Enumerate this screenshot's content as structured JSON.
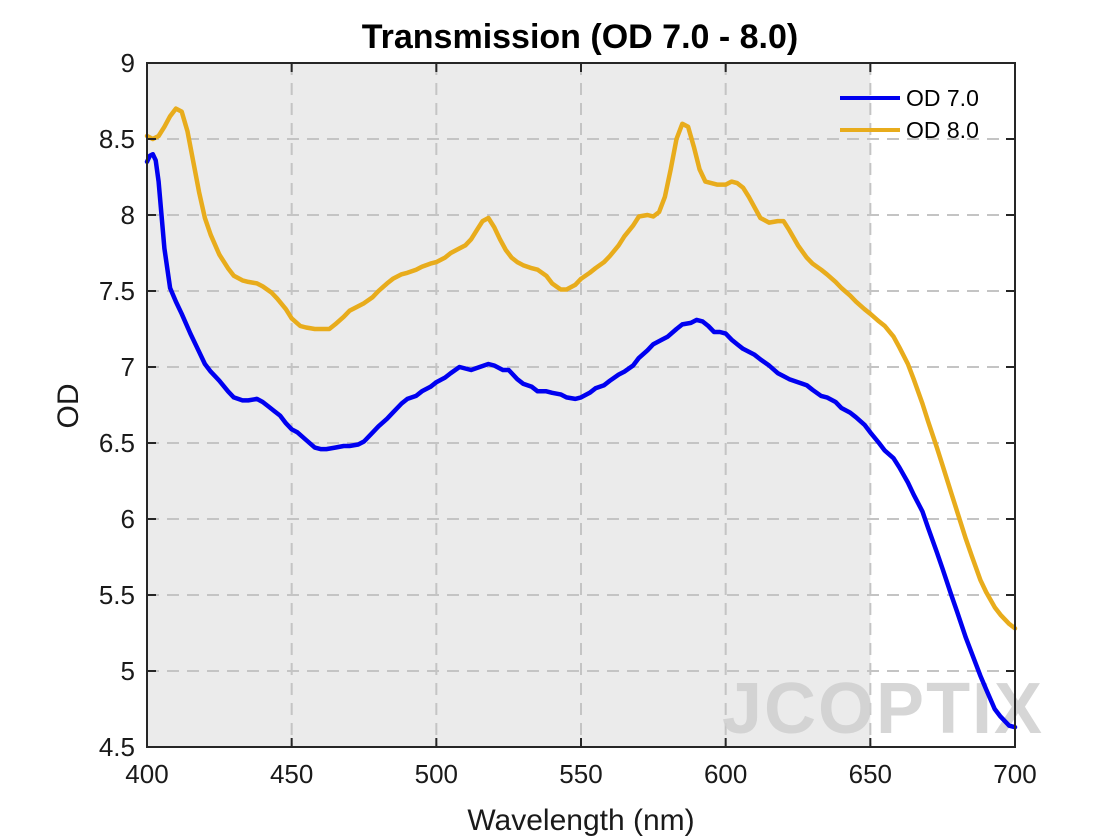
{
  "chart_data": {
    "type": "line",
    "title": "Transmission (OD 7.0 - 8.0)",
    "xlabel": "Wavelength (nm)",
    "ylabel": "OD",
    "xlim": [
      400,
      700
    ],
    "ylim": [
      4.5,
      9
    ],
    "xticks": [
      400,
      450,
      500,
      550,
      600,
      650,
      700
    ],
    "yticks": [
      4.5,
      5,
      5.5,
      6,
      6.5,
      7,
      7.5,
      8,
      8.5,
      9
    ],
    "xtick_labels": [
      "400",
      "450",
      "500",
      "550",
      "600",
      "650",
      "700"
    ],
    "ytick_labels": [
      "4.5",
      "5",
      "5.5",
      "6",
      "6.5",
      "7",
      "7.5",
      "8",
      "8.5",
      "9"
    ],
    "grid": true,
    "shaded_region": {
      "x_from": 400,
      "x_to": 650,
      "color": "#ebebeb"
    },
    "legend_position": "top-right",
    "watermark": "JCOPTIX",
    "series": [
      {
        "name": "OD 7.0",
        "color": "#0000f0",
        "x": [
          400,
          401,
          402,
          403,
          404,
          405,
          406,
          408,
          410,
          412,
          415,
          418,
          420,
          422,
          425,
          428,
          430,
          433,
          435,
          438,
          440,
          442,
          444,
          446,
          448,
          450,
          452,
          455,
          458,
          460,
          462,
          465,
          468,
          470,
          473,
          475,
          478,
          480,
          483,
          485,
          488,
          490,
          493,
          495,
          498,
          500,
          503,
          505,
          508,
          510,
          512,
          515,
          518,
          520,
          523,
          525,
          528,
          530,
          533,
          535,
          538,
          540,
          543,
          545,
          548,
          550,
          553,
          555,
          558,
          560,
          563,
          565,
          568,
          570,
          573,
          575,
          578,
          580,
          583,
          585,
          588,
          590,
          592,
          594,
          596,
          598,
          600,
          602,
          604,
          606,
          608,
          610,
          612,
          615,
          618,
          620,
          622,
          625,
          628,
          630,
          633,
          635,
          638,
          640,
          643,
          645,
          648,
          650,
          653,
          655,
          658,
          660,
          663,
          665,
          668,
          670,
          673,
          675,
          678,
          680,
          683,
          685,
          688,
          690,
          693,
          695,
          698,
          700
        ],
        "values": [
          8.35,
          8.39,
          8.4,
          8.36,
          8.22,
          8.0,
          7.78,
          7.52,
          7.43,
          7.35,
          7.22,
          7.1,
          7.02,
          6.97,
          6.91,
          6.84,
          6.8,
          6.78,
          6.78,
          6.79,
          6.77,
          6.74,
          6.71,
          6.68,
          6.63,
          6.59,
          6.57,
          6.52,
          6.47,
          6.46,
          6.46,
          6.47,
          6.48,
          6.48,
          6.49,
          6.51,
          6.57,
          6.61,
          6.66,
          6.7,
          6.76,
          6.79,
          6.81,
          6.84,
          6.87,
          6.9,
          6.93,
          6.96,
          7.0,
          6.99,
          6.98,
          7.0,
          7.02,
          7.01,
          6.98,
          6.98,
          6.92,
          6.89,
          6.87,
          6.84,
          6.84,
          6.83,
          6.82,
          6.8,
          6.79,
          6.8,
          6.83,
          6.86,
          6.88,
          6.91,
          6.95,
          6.97,
          7.01,
          7.06,
          7.11,
          7.15,
          7.18,
          7.2,
          7.25,
          7.28,
          7.29,
          7.31,
          7.3,
          7.27,
          7.23,
          7.23,
          7.22,
          7.18,
          7.15,
          7.12,
          7.1,
          7.08,
          7.05,
          7.01,
          6.96,
          6.94,
          6.92,
          6.9,
          6.88,
          6.85,
          6.81,
          6.8,
          6.77,
          6.73,
          6.7,
          6.67,
          6.62,
          6.57,
          6.5,
          6.45,
          6.4,
          6.34,
          6.24,
          6.16,
          6.05,
          5.94,
          5.78,
          5.67,
          5.5,
          5.39,
          5.22,
          5.12,
          4.97,
          4.88,
          4.75,
          4.7,
          4.64,
          4.63
        ]
      },
      {
        "name": "OD 8.0",
        "color": "#e8ac1c",
        "x": [
          400,
          402,
          404,
          406,
          408,
          410,
          412,
          414,
          416,
          418,
          420,
          422,
          425,
          428,
          430,
          433,
          435,
          438,
          440,
          443,
          445,
          448,
          450,
          453,
          455,
          458,
          460,
          463,
          465,
          468,
          470,
          473,
          475,
          478,
          480,
          483,
          485,
          488,
          490,
          493,
          495,
          498,
          500,
          503,
          505,
          508,
          510,
          512,
          514,
          516,
          518,
          520,
          522,
          524,
          526,
          528,
          530,
          533,
          535,
          538,
          540,
          543,
          545,
          548,
          550,
          553,
          555,
          558,
          560,
          563,
          565,
          568,
          570,
          573,
          575,
          577,
          579,
          581,
          583,
          585,
          587,
          589,
          591,
          593,
          595,
          597,
          600,
          602,
          604,
          606,
          608,
          610,
          612,
          615,
          618,
          620,
          622,
          625,
          628,
          630,
          633,
          635,
          638,
          640,
          643,
          645,
          648,
          650,
          653,
          655,
          658,
          660,
          663,
          665,
          668,
          670,
          673,
          675,
          678,
          680,
          683,
          685,
          688,
          690,
          693,
          695,
          698,
          700
        ],
        "values": [
          8.52,
          8.5,
          8.52,
          8.58,
          8.65,
          8.7,
          8.68,
          8.55,
          8.35,
          8.15,
          7.98,
          7.87,
          7.74,
          7.65,
          7.6,
          7.57,
          7.56,
          7.55,
          7.53,
          7.49,
          7.45,
          7.38,
          7.32,
          7.27,
          7.26,
          7.25,
          7.25,
          7.25,
          7.28,
          7.33,
          7.37,
          7.4,
          7.42,
          7.46,
          7.5,
          7.55,
          7.58,
          7.61,
          7.62,
          7.64,
          7.66,
          7.68,
          7.69,
          7.72,
          7.75,
          7.78,
          7.8,
          7.84,
          7.9,
          7.96,
          7.98,
          7.92,
          7.84,
          7.77,
          7.72,
          7.69,
          7.67,
          7.65,
          7.64,
          7.6,
          7.55,
          7.51,
          7.51,
          7.54,
          7.58,
          7.62,
          7.65,
          7.69,
          7.73,
          7.8,
          7.86,
          7.93,
          7.99,
          8.0,
          7.99,
          8.02,
          8.12,
          8.3,
          8.5,
          8.6,
          8.58,
          8.45,
          8.3,
          8.22,
          8.21,
          8.2,
          8.2,
          8.22,
          8.21,
          8.18,
          8.12,
          8.05,
          7.98,
          7.95,
          7.96,
          7.96,
          7.9,
          7.8,
          7.72,
          7.68,
          7.64,
          7.61,
          7.56,
          7.52,
          7.47,
          7.43,
          7.38,
          7.35,
          7.3,
          7.27,
          7.2,
          7.13,
          7.02,
          6.92,
          6.76,
          6.64,
          6.47,
          6.35,
          6.17,
          6.05,
          5.87,
          5.76,
          5.6,
          5.52,
          5.42,
          5.37,
          5.31,
          5.28
        ]
      }
    ]
  }
}
